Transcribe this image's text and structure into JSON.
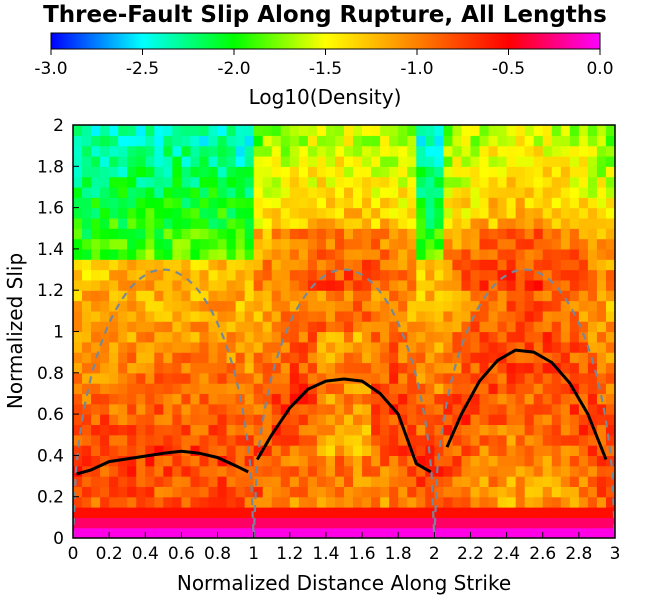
{
  "chart_data": {
    "type": "heatmap",
    "title": "Three-Fault Slip Along Rupture, All Lengths",
    "xlabel": "Normalized Distance Along Strike",
    "ylabel": "Normalized Slip",
    "colorbar_label": "Log10(Density)",
    "colorbar_range": [
      -3.0,
      0.0
    ],
    "colorbar_ticks": [
      "-3.0",
      "-2.5",
      "-2.0",
      "-1.5",
      "-1.0",
      "-0.5",
      "0.0"
    ],
    "colormap": [
      "#0000ff",
      "#00ffff",
      "#00ff00",
      "#ffff00",
      "#ff8000",
      "#ff0000",
      "#ff00ff"
    ],
    "xlim": [
      0,
      3
    ],
    "ylim": [
      0,
      2
    ],
    "xticks": [
      "0",
      "0.2",
      "0.4",
      "0.6",
      "0.8",
      "1",
      "1.2",
      "1.4",
      "1.6",
      "1.8",
      "2",
      "2.2",
      "2.4",
      "2.6",
      "2.8",
      "3"
    ],
    "yticks": [
      "0",
      "0.2",
      "0.4",
      "0.6",
      "0.8",
      "1",
      "1.2",
      "1.4",
      "1.6",
      "1.8",
      "2"
    ],
    "density_note": "log10 density highest near slip 0 (~0), ~-1.3 near mean slip, ~-2.2 above 1.4 in lower-slip segments",
    "mean_slip": [
      {
        "x": [
          0.02,
          0.1,
          0.2,
          0.35,
          0.5,
          0.6,
          0.7,
          0.8,
          0.9,
          0.97
        ],
        "y": [
          0.31,
          0.33,
          0.37,
          0.39,
          0.41,
          0.42,
          0.41,
          0.39,
          0.35,
          0.32
        ]
      },
      {
        "x": [
          1.02,
          1.1,
          1.2,
          1.3,
          1.4,
          1.5,
          1.6,
          1.7,
          1.8,
          1.9,
          1.98
        ],
        "y": [
          0.38,
          0.5,
          0.63,
          0.72,
          0.76,
          0.77,
          0.76,
          0.7,
          0.6,
          0.36,
          0.32
        ]
      },
      {
        "x": [
          2.07,
          2.15,
          2.25,
          2.35,
          2.45,
          2.55,
          2.65,
          2.75,
          2.85,
          2.95
        ],
        "y": [
          0.44,
          0.6,
          0.76,
          0.86,
          0.91,
          0.9,
          0.85,
          0.75,
          0.6,
          0.38
        ]
      }
    ],
    "reference_ellipse": {
      "peak": 1.3,
      "style": "dashed",
      "color": "#778899"
    },
    "colors": {
      "mean_line": "#000000",
      "ellipse": "#778899"
    }
  }
}
